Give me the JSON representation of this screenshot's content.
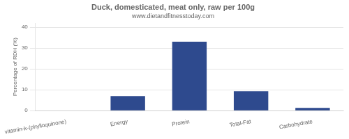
{
  "chart_data": {
    "type": "bar",
    "title": "Duck, domesticated, meat only, raw per 100g",
    "subtitle": "www.dietandfitnesstoday.com",
    "categories": [
      "vitamin-k-(phylloquinone)",
      "Energy",
      "Protein",
      "Total-Fat",
      "Carbohydrate"
    ],
    "values": [
      0,
      7,
      33,
      9.3,
      1.3
    ],
    "color": "#2e4a8e",
    "ylabel": "Percentage of RDH (%)",
    "ylim": [
      0,
      42
    ],
    "yticks": [
      0,
      10,
      20,
      30,
      40
    ],
    "grid": true
  }
}
